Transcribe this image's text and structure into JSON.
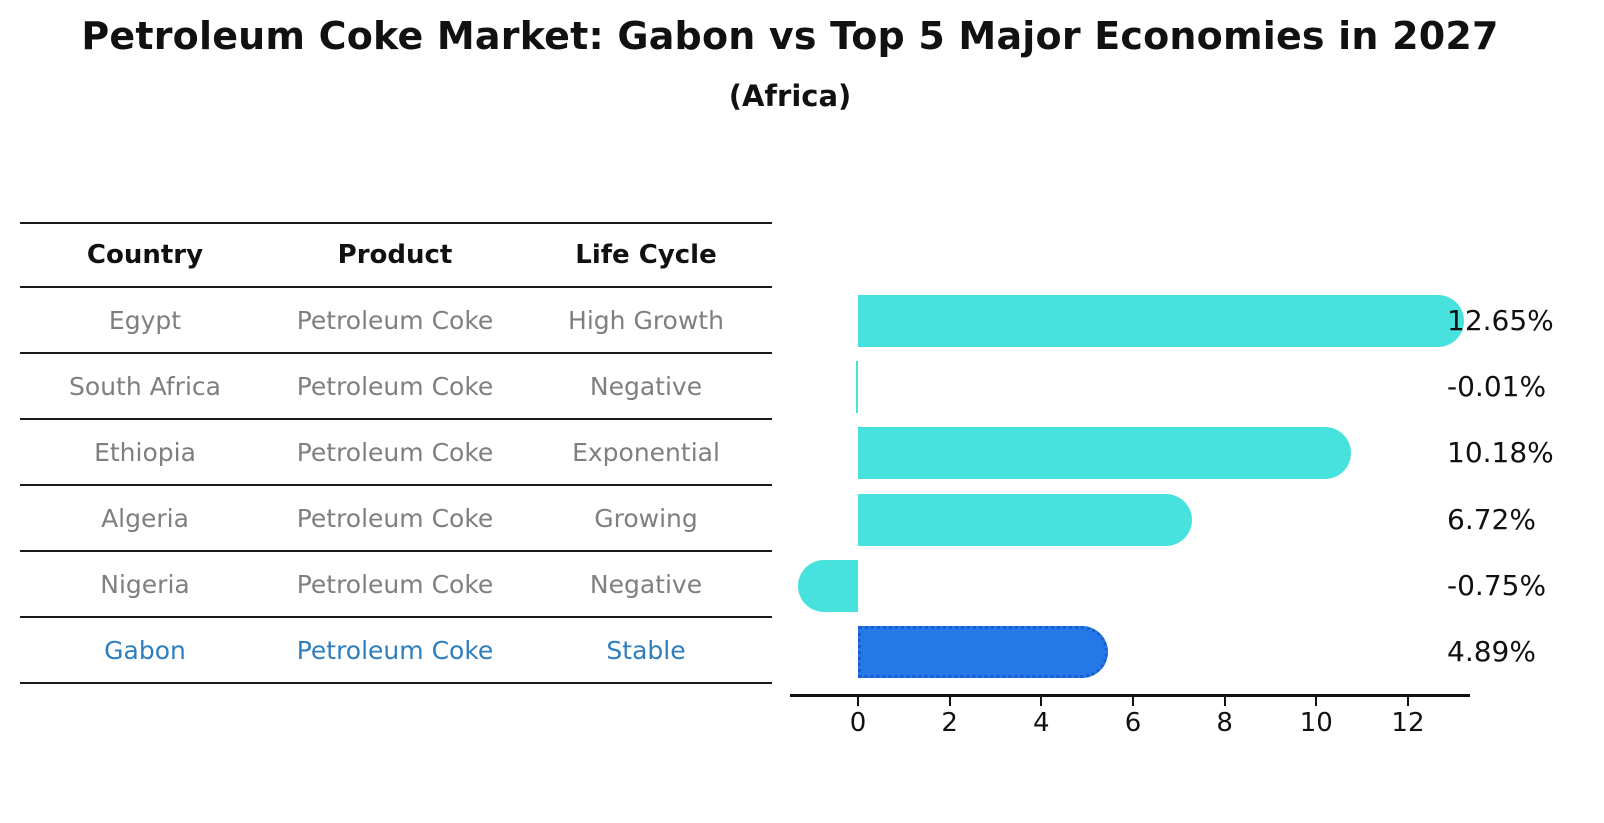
{
  "title": "Petroleum Coke Market: Gabon vs Top 5 Major Economies in 2027",
  "subtitle": "(Africa)",
  "table": {
    "headers": [
      "Country",
      "Product",
      "Life Cycle"
    ],
    "rows": [
      {
        "country": "Egypt",
        "product": "Petroleum Coke",
        "life_cycle": "High Growth",
        "highlight": false
      },
      {
        "country": "South Africa",
        "product": "Petroleum Coke",
        "life_cycle": "Negative",
        "highlight": false
      },
      {
        "country": "Ethiopia",
        "product": "Petroleum Coke",
        "life_cycle": "Exponential",
        "highlight": false
      },
      {
        "country": "Algeria",
        "product": "Petroleum Coke",
        "life_cycle": "Growing",
        "highlight": false
      },
      {
        "country": "Nigeria",
        "product": "Petroleum Coke",
        "life_cycle": "Negative",
        "highlight": false
      },
      {
        "country": "Gabon",
        "product": "Petroleum Coke",
        "life_cycle": "Stable",
        "highlight": true
      }
    ]
  },
  "chart_data": {
    "type": "bar",
    "orientation": "horizontal",
    "title": "Petroleum Coke Market: Gabon vs Top 5 Major Economies in 2027 (Africa)",
    "categories": [
      "Egypt",
      "South Africa",
      "Ethiopia",
      "Algeria",
      "Nigeria",
      "Gabon"
    ],
    "values": [
      12.65,
      -0.01,
      10.18,
      6.72,
      -0.75,
      4.89
    ],
    "value_labels": [
      "12.65%",
      "-0.01%",
      "10.18%",
      "6.72%",
      "-0.75%",
      "4.89%"
    ],
    "unit": "%",
    "x_ticks": [
      0,
      2,
      4,
      6,
      8,
      10,
      12
    ],
    "xlim": [
      -1.5,
      13.4
    ],
    "grid": false,
    "legend": false,
    "highlight_index": 5,
    "value_labels_position": "right-column"
  },
  "colors": {
    "bar": "#47E2DE",
    "highlight_bar": "#2478E8",
    "highlight_border": "#1A5ECC",
    "highlight_text": "#2E7EBF",
    "table_text": "#7f7f7f",
    "heading_text": "#111111",
    "background": "#ffffff"
  }
}
